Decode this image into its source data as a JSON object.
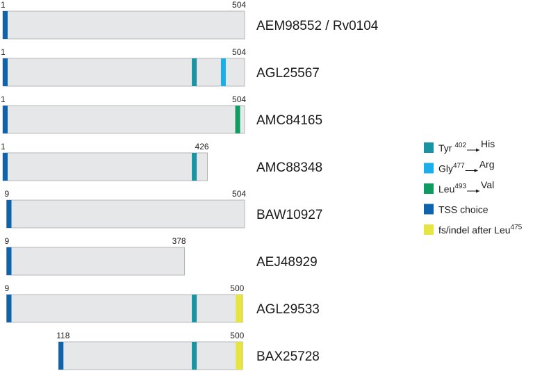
{
  "figure": {
    "type": "protein-alignment-diagram",
    "colors": {
      "bar_fill": "#e6e7e8",
      "bar_stroke": "#a7a9ac",
      "tyr402his": "#1a93a3",
      "gly477arg": "#1baee8",
      "leu493val": "#0f9c63",
      "tss": "#0f63aa",
      "fs_indel": "#e6e543"
    },
    "rows": [
      {
        "label": "AEM98552 / Rv0104",
        "start": "1",
        "end": "504",
        "start_pos": 1,
        "end_pos": 504,
        "marks": [
          "tss"
        ]
      },
      {
        "label": "AGL25567",
        "start": "1",
        "end": "504",
        "start_pos": 1,
        "end_pos": 504,
        "marks": [
          "tss",
          "tyr402his",
          "gly477arg"
        ]
      },
      {
        "label": "AMC84165",
        "start": "1",
        "end": "504",
        "start_pos": 1,
        "end_pos": 504,
        "marks": [
          "tss",
          "leu493val"
        ]
      },
      {
        "label": "AMC88348",
        "start": "1",
        "end": "426",
        "start_pos": 1,
        "end_pos": 426,
        "marks": [
          "tss",
          "tyr402his"
        ]
      },
      {
        "label": "BAW10927",
        "start": "9",
        "end": "504",
        "start_pos": 9,
        "end_pos": 504,
        "marks": [
          "tss"
        ]
      },
      {
        "label": "AEJ48929",
        "start": "9",
        "end": "378",
        "start_pos": 9,
        "end_pos": 378,
        "marks": [
          "tss"
        ]
      },
      {
        "label": "AGL29533",
        "start": "9",
        "end": "500",
        "start_pos": 9,
        "end_pos": 500,
        "marks": [
          "tss",
          "tyr402his",
          "fs_indel"
        ]
      },
      {
        "label": "BAX25728",
        "start": "118",
        "end": "500",
        "start_pos": 118,
        "end_pos": 500,
        "marks": [
          "tss",
          "tyr402his",
          "fs_indel"
        ]
      }
    ],
    "legend": [
      {
        "key": "tyr402his",
        "parts": [
          {
            "t": "Tyr "
          },
          {
            "sup": "402"
          },
          {
            "arrow": true
          },
          {
            "t": "His"
          }
        ]
      },
      {
        "key": "gly477arg",
        "parts": [
          {
            "t": "Gly"
          },
          {
            "sup": "477"
          },
          {
            "arrow": true
          },
          {
            "t": "Arg"
          }
        ]
      },
      {
        "key": "leu493val",
        "parts": [
          {
            "t": "Leu"
          },
          {
            "sup": "493"
          },
          {
            "arrow": true
          },
          {
            "t": "Val"
          }
        ]
      },
      {
        "key": "tss",
        "parts": [
          {
            "t": "TSS choice"
          }
        ]
      },
      {
        "key": "fs_indel",
        "parts": [
          {
            "t": "fs/indel after Leu"
          },
          {
            "sup": "475"
          }
        ]
      }
    ]
  }
}
